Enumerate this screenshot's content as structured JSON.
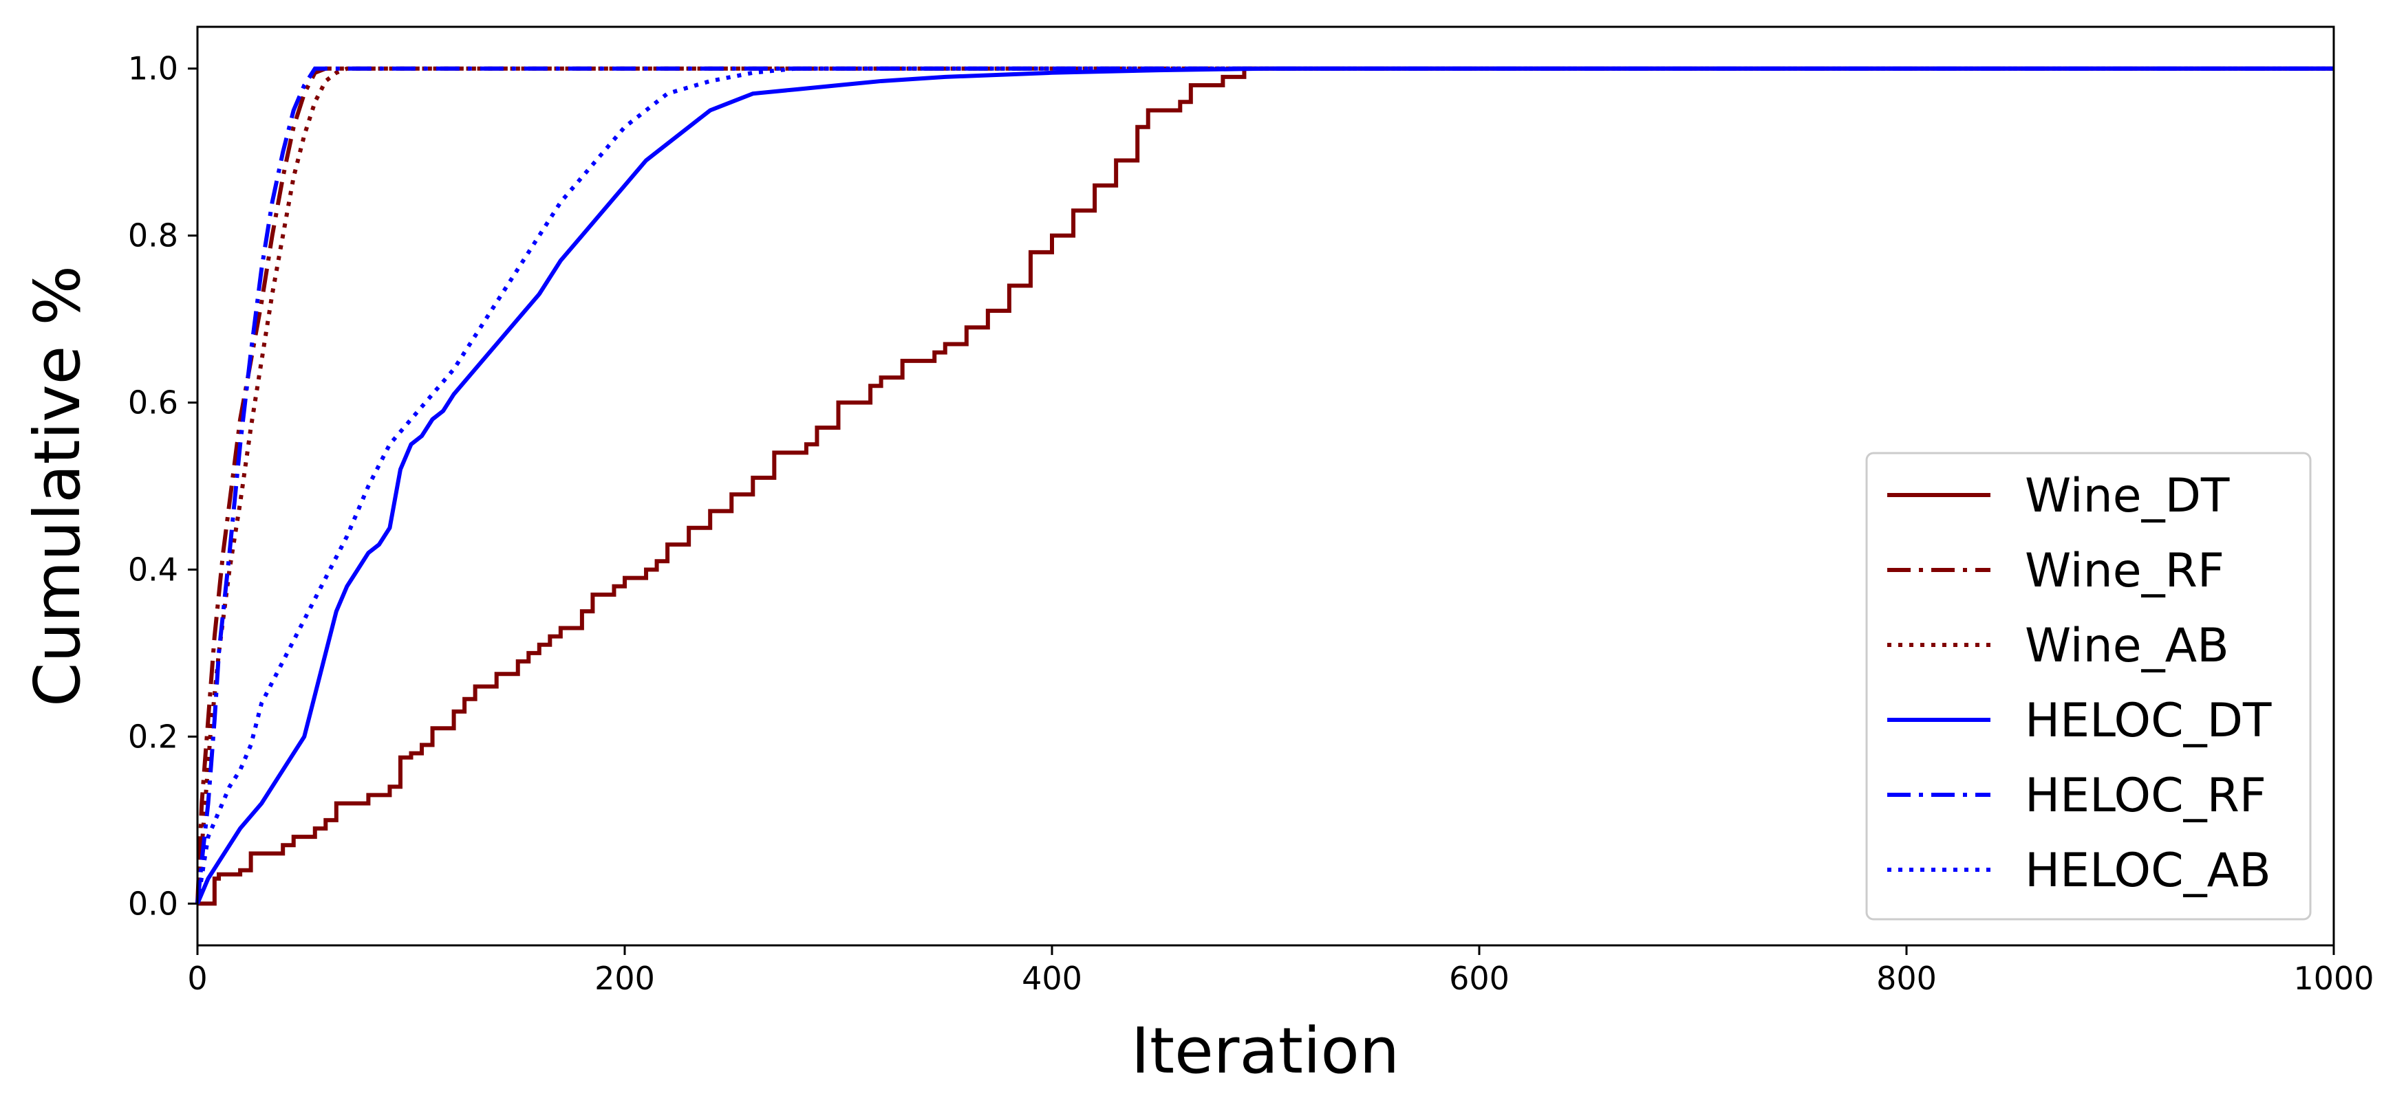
{
  "chart_data": {
    "type": "line",
    "title": "",
    "xlabel": "Iteration",
    "ylabel": "Cumulative %",
    "xlim": [
      0,
      1000
    ],
    "ylim": [
      -0.05,
      1.05
    ],
    "x_ticks": [
      0,
      200,
      400,
      600,
      800,
      1000
    ],
    "x_tick_labels": [
      "0",
      "200",
      "400",
      "600",
      "800",
      "1000"
    ],
    "y_ticks": [
      0.0,
      0.2,
      0.4,
      0.6,
      0.8,
      1.0
    ],
    "y_tick_labels": [
      "0.0",
      "0.2",
      "0.4",
      "0.6",
      "0.8",
      "1.0"
    ],
    "grid": false,
    "legend_position": "lower-right",
    "series": [
      {
        "name": "Wine_DT",
        "color": "#800000",
        "line_style": "solid",
        "step": true,
        "x": [
          0,
          8,
          10,
          20,
          25,
          40,
          45,
          55,
          60,
          65,
          75,
          80,
          90,
          95,
          100,
          105,
          110,
          115,
          120,
          125,
          130,
          140,
          150,
          155,
          160,
          165,
          170,
          180,
          185,
          195,
          200,
          210,
          215,
          220,
          230,
          240,
          250,
          260,
          270,
          285,
          290,
          300,
          315,
          320,
          330,
          345,
          350,
          360,
          370,
          380,
          390,
          400,
          410,
          420,
          430,
          440,
          445,
          460,
          465,
          480,
          490,
          500,
          510,
          520,
          1000
        ],
        "y": [
          0.0,
          0.03,
          0.035,
          0.04,
          0.06,
          0.07,
          0.08,
          0.09,
          0.1,
          0.12,
          0.12,
          0.13,
          0.14,
          0.175,
          0.18,
          0.19,
          0.21,
          0.21,
          0.23,
          0.245,
          0.26,
          0.275,
          0.29,
          0.3,
          0.31,
          0.32,
          0.33,
          0.35,
          0.37,
          0.38,
          0.39,
          0.4,
          0.41,
          0.43,
          0.45,
          0.47,
          0.49,
          0.51,
          0.54,
          0.55,
          0.57,
          0.6,
          0.62,
          0.63,
          0.65,
          0.66,
          0.67,
          0.69,
          0.71,
          0.74,
          0.78,
          0.8,
          0.83,
          0.86,
          0.89,
          0.93,
          0.95,
          0.96,
          0.98,
          0.99,
          1.0,
          1.0,
          1.0,
          1.0,
          1.0
        ]
      },
      {
        "name": "Wine_RF",
        "color": "#800000",
        "line_style": "dashdot",
        "step": false,
        "x": [
          0,
          2,
          5,
          8,
          12,
          16,
          20,
          25,
          30,
          35,
          40,
          45,
          50,
          55,
          60,
          100,
          1000
        ],
        "y": [
          0.0,
          0.12,
          0.22,
          0.32,
          0.42,
          0.5,
          0.58,
          0.65,
          0.72,
          0.8,
          0.87,
          0.93,
          0.97,
          0.995,
          1.0,
          1.0,
          1.0
        ]
      },
      {
        "name": "Wine_AB",
        "color": "#800000",
        "line_style": "dotted",
        "step": false,
        "x": [
          0,
          3,
          6,
          10,
          15,
          20,
          25,
          30,
          35,
          40,
          45,
          50,
          55,
          60,
          65,
          70,
          100,
          1000
        ],
        "y": [
          0.0,
          0.1,
          0.2,
          0.3,
          0.4,
          0.48,
          0.57,
          0.65,
          0.73,
          0.8,
          0.87,
          0.92,
          0.96,
          0.985,
          0.995,
          1.0,
          1.0,
          1.0
        ]
      },
      {
        "name": "HELOC_DT",
        "color": "#0000ff",
        "line_style": "solid",
        "step": false,
        "x": [
          0,
          5,
          10,
          15,
          20,
          30,
          40,
          50,
          55,
          60,
          65,
          70,
          75,
          80,
          85,
          90,
          95,
          100,
          105,
          110,
          115,
          120,
          130,
          140,
          150,
          160,
          170,
          180,
          190,
          200,
          210,
          220,
          230,
          240,
          250,
          260,
          280,
          300,
          320,
          350,
          400,
          450,
          500,
          550,
          1000
        ],
        "y": [
          0.0,
          0.03,
          0.05,
          0.07,
          0.09,
          0.12,
          0.16,
          0.2,
          0.25,
          0.3,
          0.35,
          0.38,
          0.4,
          0.42,
          0.43,
          0.45,
          0.52,
          0.55,
          0.56,
          0.58,
          0.59,
          0.61,
          0.64,
          0.67,
          0.7,
          0.73,
          0.77,
          0.8,
          0.83,
          0.86,
          0.89,
          0.91,
          0.93,
          0.95,
          0.96,
          0.97,
          0.975,
          0.98,
          0.985,
          0.99,
          0.995,
          0.998,
          1.0,
          1.0,
          1.0
        ]
      },
      {
        "name": "HELOC_RF",
        "color": "#0000ff",
        "line_style": "dashdot",
        "step": false,
        "x": [
          0,
          2,
          5,
          8,
          10,
          15,
          20,
          25,
          30,
          35,
          40,
          45,
          50,
          55,
          100,
          1000
        ],
        "y": [
          0.0,
          0.05,
          0.12,
          0.22,
          0.3,
          0.42,
          0.55,
          0.66,
          0.76,
          0.84,
          0.9,
          0.95,
          0.98,
          1.0,
          1.0,
          1.0
        ]
      },
      {
        "name": "HELOC_AB",
        "color": "#0000ff",
        "line_style": "dotted",
        "step": false,
        "x": [
          0,
          5,
          10,
          15,
          20,
          25,
          30,
          40,
          50,
          60,
          70,
          80,
          90,
          100,
          110,
          120,
          130,
          140,
          150,
          160,
          170,
          180,
          190,
          200,
          210,
          220,
          240,
          260,
          280,
          300,
          1000
        ],
        "y": [
          0.0,
          0.08,
          0.11,
          0.14,
          0.16,
          0.19,
          0.24,
          0.29,
          0.34,
          0.39,
          0.44,
          0.5,
          0.55,
          0.58,
          0.61,
          0.64,
          0.68,
          0.72,
          0.76,
          0.8,
          0.84,
          0.87,
          0.9,
          0.93,
          0.95,
          0.97,
          0.985,
          0.995,
          1.0,
          1.0,
          1.0
        ]
      }
    ]
  }
}
